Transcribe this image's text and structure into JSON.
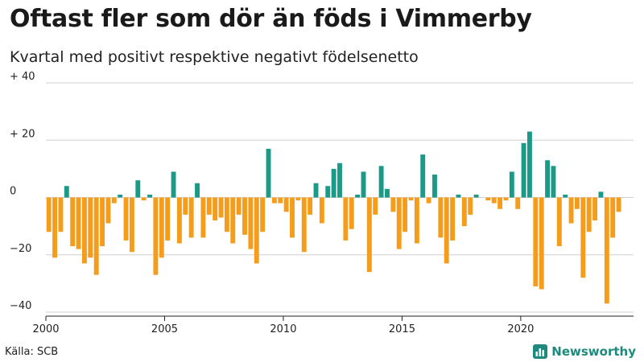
{
  "title": "Oftast fler som dör än föds i Vimmerby",
  "subtitle": "Kvartal med positivt respektive negativt födelsenetto",
  "source": "Källa: SCB",
  "brand": {
    "name": "Newsworthy",
    "icon": "bar-chart-logo-icon"
  },
  "colors": {
    "positive": "#1b9a87",
    "negative": "#f59c1a",
    "grid": "#d0d0d0",
    "axis": "#222222"
  },
  "chart_data": {
    "type": "bar",
    "title": "Oftast fler som dör än föds i Vimmerby",
    "subtitle": "Kvartal med positivt respektive negativt födelsenetto",
    "xlabel": "",
    "ylabel": "",
    "ylim": [
      -40,
      40
    ],
    "yticks": [
      40,
      20,
      0,
      -20,
      -40
    ],
    "ytick_labels": [
      "+ 40",
      "+ 20",
      "0",
      "−20",
      "−40"
    ],
    "xlim": [
      2000,
      2024.75
    ],
    "xticks": [
      2000,
      2005,
      2010,
      2015,
      2020
    ],
    "xtick_labels": [
      "2000",
      "2005",
      "2010",
      "2015",
      "2020"
    ],
    "start_year": 2000,
    "period": "quarter",
    "values": [
      -12,
      -21,
      -12,
      4,
      -17,
      -18,
      -23,
      -21,
      -27,
      -17,
      -9,
      -2,
      1,
      -15,
      -19,
      6,
      -1,
      1,
      -27,
      -21,
      -15,
      9,
      -16,
      -6,
      -14,
      5,
      -14,
      -6,
      -8,
      -7,
      -12,
      -16,
      -6,
      -13,
      -18,
      -23,
      -12,
      17,
      -2,
      -2,
      -5,
      -14,
      -1,
      -19,
      -6,
      5,
      -9,
      4,
      10,
      12,
      -15,
      -11,
      1,
      9,
      -26,
      -6,
      11,
      3,
      -5,
      -18,
      -12,
      -1,
      -16,
      15,
      -2,
      8,
      -14,
      -23,
      -15,
      1,
      -10,
      -6,
      1,
      0,
      -1,
      -2,
      -4,
      -1,
      9,
      -4,
      19,
      23,
      -31,
      -32,
      13,
      11,
      -17,
      1,
      -9,
      -4,
      -28,
      -12,
      -8,
      2,
      -37,
      -14,
      -5
    ]
  }
}
